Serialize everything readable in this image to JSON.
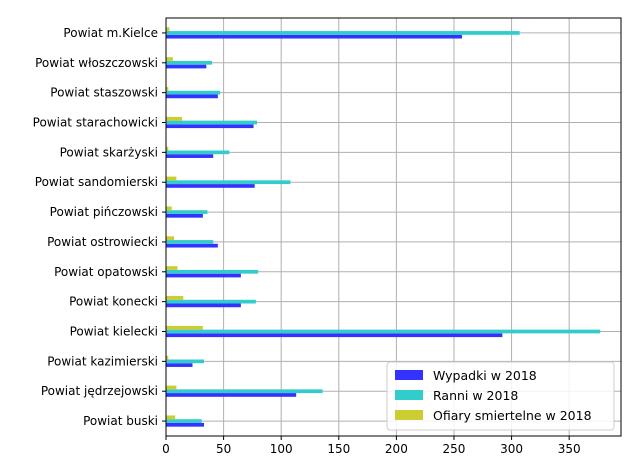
{
  "chart_data": {
    "type": "bar",
    "orientation": "horizontal",
    "categories": [
      "Powiat buski",
      "Powiat jędrzejowski",
      "Powiat kazimierski",
      "Powiat kielecki",
      "Powiat konecki",
      "Powiat opatowski",
      "Powiat ostrowiecki",
      "Powiat pińczowski",
      "Powiat sandomierski",
      "Powiat skarżyski",
      "Powiat starachowicki",
      "Powiat staszowski",
      "Powiat włoszczowski",
      "Powiat m.Kielce"
    ],
    "series": [
      {
        "name": "Wypadki w 2018",
        "color": "#3333ff",
        "values": [
          33,
          113,
          23,
          292,
          65,
          65,
          45,
          32,
          77,
          41,
          76,
          45,
          35,
          257
        ]
      },
      {
        "name": "Ranni w 2018",
        "color": "#33cccc",
        "values": [
          31,
          136,
          33,
          377,
          78,
          80,
          41,
          36,
          108,
          55,
          79,
          47,
          40,
          307
        ]
      },
      {
        "name": "Ofiary smiertelne w 2018",
        "color": "#cccc33",
        "values": [
          8,
          9,
          2,
          32,
          15,
          10,
          7,
          5,
          9,
          2,
          14,
          2,
          6,
          3
        ]
      }
    ],
    "xlim": [
      0,
      395
    ],
    "xticks": [
      0,
      50,
      100,
      150,
      200,
      250,
      300,
      350
    ],
    "grid": true,
    "legend_position": "lower-right",
    "title": "",
    "xlabel": "",
    "ylabel": ""
  }
}
